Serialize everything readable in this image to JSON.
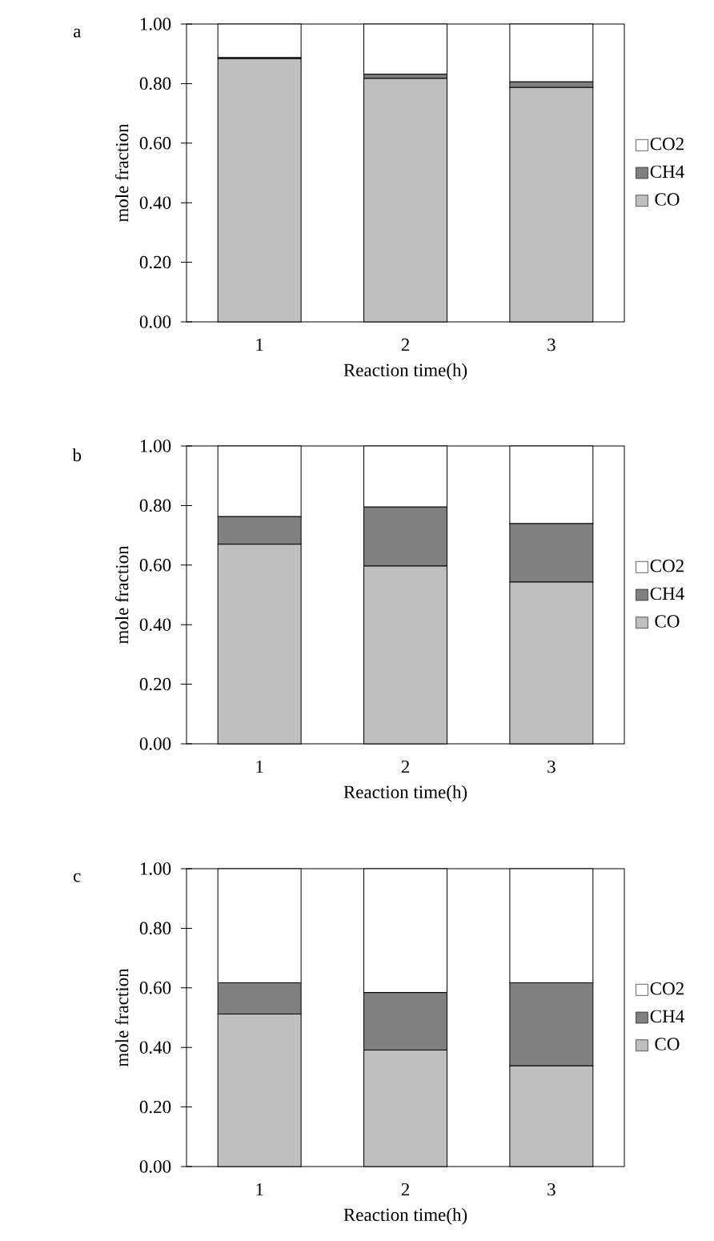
{
  "chart_data": [
    {
      "type": "bar",
      "title": "a",
      "categories": [
        "1",
        "2",
        "3"
      ],
      "xlabel": "Reaction time(h)",
      "ylabel": "mole fraction",
      "stacked": true,
      "legend": "right",
      "ylim": [
        0,
        1
      ],
      "yticks": [
        {
          "value": 0,
          "label": "0.00"
        },
        {
          "value": 0.2,
          "label": "0.20"
        },
        {
          "value": 0.4,
          "label": "0.40"
        },
        {
          "value": 0.6,
          "label": "0.60"
        },
        {
          "value": 0.8,
          "label": "0.80"
        },
        {
          "value": 1,
          "label": "1.00"
        }
      ],
      "series": [
        {
          "name": "CO",
          "color": "#bfbfbf",
          "values": [
            0.884,
            0.817,
            0.787
          ]
        },
        {
          "name": "CH4",
          "color": "#808080",
          "values": [
            0.003,
            0.014,
            0.019
          ]
        },
        {
          "name": "CO2",
          "color": "#ffffff",
          "values": [
            0.113,
            0.169,
            0.194
          ]
        }
      ]
    },
    {
      "type": "bar",
      "title": "b",
      "categories": [
        "1",
        "2",
        "3"
      ],
      "xlabel": "Reaction time(h)",
      "ylabel": "mole fraction",
      "stacked": true,
      "legend": "right",
      "ylim": [
        0,
        1
      ],
      "yticks": [
        {
          "value": 0,
          "label": "0.00"
        },
        {
          "value": 0.2,
          "label": "0.20"
        },
        {
          "value": 0.4,
          "label": "0.40"
        },
        {
          "value": 0.6,
          "label": "0.60"
        },
        {
          "value": 0.8,
          "label": "0.80"
        },
        {
          "value": 1,
          "label": "1.00"
        }
      ],
      "series": [
        {
          "name": "CO",
          "color": "#bfbfbf",
          "values": [
            0.67,
            0.597,
            0.543
          ]
        },
        {
          "name": "CH4",
          "color": "#808080",
          "values": [
            0.093,
            0.198,
            0.196
          ]
        },
        {
          "name": "CO2",
          "color": "#ffffff",
          "values": [
            0.237,
            0.205,
            0.261
          ]
        }
      ]
    },
    {
      "type": "bar",
      "title": "c",
      "categories": [
        "1",
        "2",
        "3"
      ],
      "xlabel": "Reaction time(h)",
      "ylabel": "mole fraction",
      "stacked": true,
      "legend": "right",
      "ylim": [
        0,
        1
      ],
      "yticks": [
        {
          "value": 0,
          "label": "0.00"
        },
        {
          "value": 0.2,
          "label": "0.20"
        },
        {
          "value": 0.4,
          "label": "0.40"
        },
        {
          "value": 0.6,
          "label": "0.60"
        },
        {
          "value": 0.8,
          "label": "0.80"
        },
        {
          "value": 1,
          "label": "1.00"
        }
      ],
      "series": [
        {
          "name": "CO",
          "color": "#bfbfbf",
          "values": [
            0.512,
            0.391,
            0.338
          ]
        },
        {
          "name": "CH4",
          "color": "#808080",
          "values": [
            0.105,
            0.193,
            0.279
          ]
        },
        {
          "name": "CO2",
          "color": "#ffffff",
          "values": [
            0.383,
            0.416,
            0.383
          ]
        }
      ]
    }
  ]
}
